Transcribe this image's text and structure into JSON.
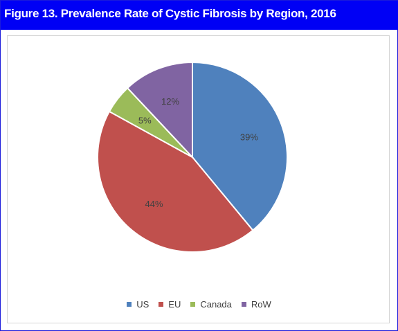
{
  "figure_title": "Figure 13. Prevalence Rate of Cystic Fibrosis by Region, 2016",
  "chart_data": {
    "type": "pie",
    "title": "",
    "categories": [
      "US",
      "EU",
      "Canada",
      "RoW"
    ],
    "values": [
      39,
      44,
      5,
      12
    ],
    "data_labels": [
      "39%",
      "44%",
      "5%",
      "12%"
    ],
    "colors": [
      "#4f81bd",
      "#c0504d",
      "#9bbb59",
      "#8064a2"
    ],
    "start_angle": "12 o'clock, clockwise",
    "legend_position": "bottom"
  }
}
